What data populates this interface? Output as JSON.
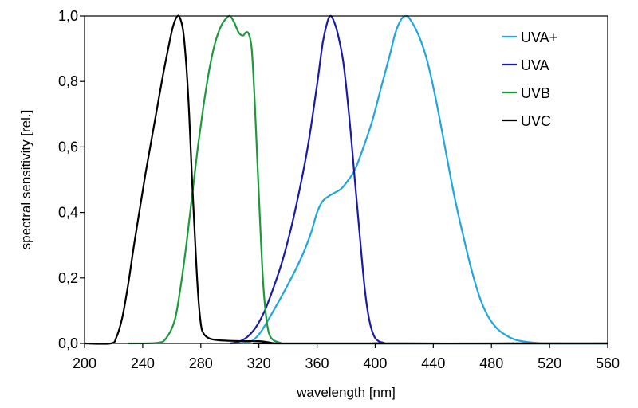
{
  "chart_data": {
    "type": "line",
    "title": "",
    "xlabel": "wavelength [nm]",
    "ylabel": "spectral sensitivity [rel.]",
    "xlim": [
      200,
      560
    ],
    "ylim": [
      0,
      1
    ],
    "x_ticks": [
      200,
      240,
      280,
      320,
      360,
      400,
      440,
      480,
      520,
      560
    ],
    "x_tick_labels": [
      "200",
      "240",
      "280",
      "320",
      "360",
      "400",
      "440",
      "480",
      "520",
      "560"
    ],
    "y_ticks": [
      0,
      0.2,
      0.4,
      0.6,
      0.8,
      1.0
    ],
    "y_tick_labels": [
      "0,0",
      "0,2",
      "0,4",
      "0,6",
      "0,8",
      "1,0"
    ],
    "grid": false,
    "legend_position": "top-right",
    "series": [
      {
        "name": "UVA+",
        "color": "#1ea6dd",
        "points": [
          [
            300,
            0
          ],
          [
            310,
            0.002
          ],
          [
            316,
            0.01
          ],
          [
            322,
            0.04
          ],
          [
            330,
            0.1
          ],
          [
            340,
            0.18
          ],
          [
            350,
            0.27
          ],
          [
            356,
            0.34
          ],
          [
            360,
            0.4
          ],
          [
            364,
            0.435
          ],
          [
            370,
            0.455
          ],
          [
            376,
            0.47
          ],
          [
            380,
            0.49
          ],
          [
            386,
            0.53
          ],
          [
            392,
            0.6
          ],
          [
            398,
            0.68
          ],
          [
            404,
            0.78
          ],
          [
            410,
            0.88
          ],
          [
            414,
            0.95
          ],
          [
            418,
            0.99
          ],
          [
            421,
            1.0
          ],
          [
            424,
            0.99
          ],
          [
            430,
            0.94
          ],
          [
            436,
            0.86
          ],
          [
            442,
            0.74
          ],
          [
            448,
            0.6
          ],
          [
            454,
            0.46
          ],
          [
            460,
            0.34
          ],
          [
            466,
            0.23
          ],
          [
            472,
            0.14
          ],
          [
            478,
            0.08
          ],
          [
            484,
            0.045
          ],
          [
            490,
            0.025
          ],
          [
            496,
            0.012
          ],
          [
            502,
            0.006
          ],
          [
            510,
            0.002
          ],
          [
            520,
            0
          ],
          [
            560,
            0
          ]
        ]
      },
      {
        "name": "UVA",
        "color": "#1a1aa8",
        "points": [
          [
            300,
            0
          ],
          [
            306,
            0.005
          ],
          [
            312,
            0.02
          ],
          [
            318,
            0.05
          ],
          [
            324,
            0.1
          ],
          [
            330,
            0.17
          ],
          [
            336,
            0.25
          ],
          [
            342,
            0.35
          ],
          [
            348,
            0.47
          ],
          [
            354,
            0.61
          ],
          [
            360,
            0.79
          ],
          [
            364,
            0.92
          ],
          [
            367,
            0.98
          ],
          [
            369,
            1.0
          ],
          [
            371,
            0.99
          ],
          [
            374,
            0.95
          ],
          [
            378,
            0.86
          ],
          [
            382,
            0.7
          ],
          [
            386,
            0.5
          ],
          [
            390,
            0.3
          ],
          [
            393,
            0.16
          ],
          [
            396,
            0.07
          ],
          [
            399,
            0.025
          ],
          [
            402,
            0.008
          ],
          [
            406,
            0.002
          ],
          [
            410,
            0
          ],
          [
            560,
            0
          ]
        ]
      },
      {
        "name": "UVB",
        "color": "#1a9a3c",
        "points": [
          [
            230,
            0
          ],
          [
            250,
            0.002
          ],
          [
            256,
            0.015
          ],
          [
            262,
            0.07
          ],
          [
            266,
            0.17
          ],
          [
            270,
            0.3
          ],
          [
            274,
            0.45
          ],
          [
            278,
            0.6
          ],
          [
            282,
            0.73
          ],
          [
            286,
            0.84
          ],
          [
            290,
            0.92
          ],
          [
            294,
            0.97
          ],
          [
            297,
            0.99
          ],
          [
            300,
            1.0
          ],
          [
            303,
            0.98
          ],
          [
            306,
            0.95
          ],
          [
            309,
            0.94
          ],
          [
            311,
            0.95
          ],
          [
            313,
            0.945
          ],
          [
            315,
            0.9
          ],
          [
            317,
            0.75
          ],
          [
            319,
            0.55
          ],
          [
            321,
            0.35
          ],
          [
            323,
            0.18
          ],
          [
            325,
            0.08
          ],
          [
            327,
            0.03
          ],
          [
            330,
            0.01
          ],
          [
            335,
            0.002
          ],
          [
            340,
            0
          ],
          [
            560,
            0
          ]
        ]
      },
      {
        "name": "UVC",
        "color": "#000000",
        "points": [
          [
            200,
            0
          ],
          [
            218,
            0
          ],
          [
            222,
            0.02
          ],
          [
            226,
            0.08
          ],
          [
            230,
            0.18
          ],
          [
            234,
            0.3
          ],
          [
            238,
            0.41
          ],
          [
            242,
            0.52
          ],
          [
            246,
            0.62
          ],
          [
            250,
            0.72
          ],
          [
            254,
            0.82
          ],
          [
            258,
            0.91
          ],
          [
            261,
            0.97
          ],
          [
            264,
            1.0
          ],
          [
            266,
            0.99
          ],
          [
            268,
            0.95
          ],
          [
            270,
            0.85
          ],
          [
            272,
            0.7
          ],
          [
            274,
            0.5
          ],
          [
            276,
            0.32
          ],
          [
            278,
            0.16
          ],
          [
            280,
            0.06
          ],
          [
            282,
            0.03
          ],
          [
            286,
            0.015
          ],
          [
            292,
            0.01
          ],
          [
            300,
            0.008
          ],
          [
            310,
            0.007
          ],
          [
            320,
            0.007
          ],
          [
            326,
            0.004
          ],
          [
            330,
            0.001
          ],
          [
            334,
            0
          ],
          [
            560,
            0
          ]
        ]
      }
    ]
  }
}
